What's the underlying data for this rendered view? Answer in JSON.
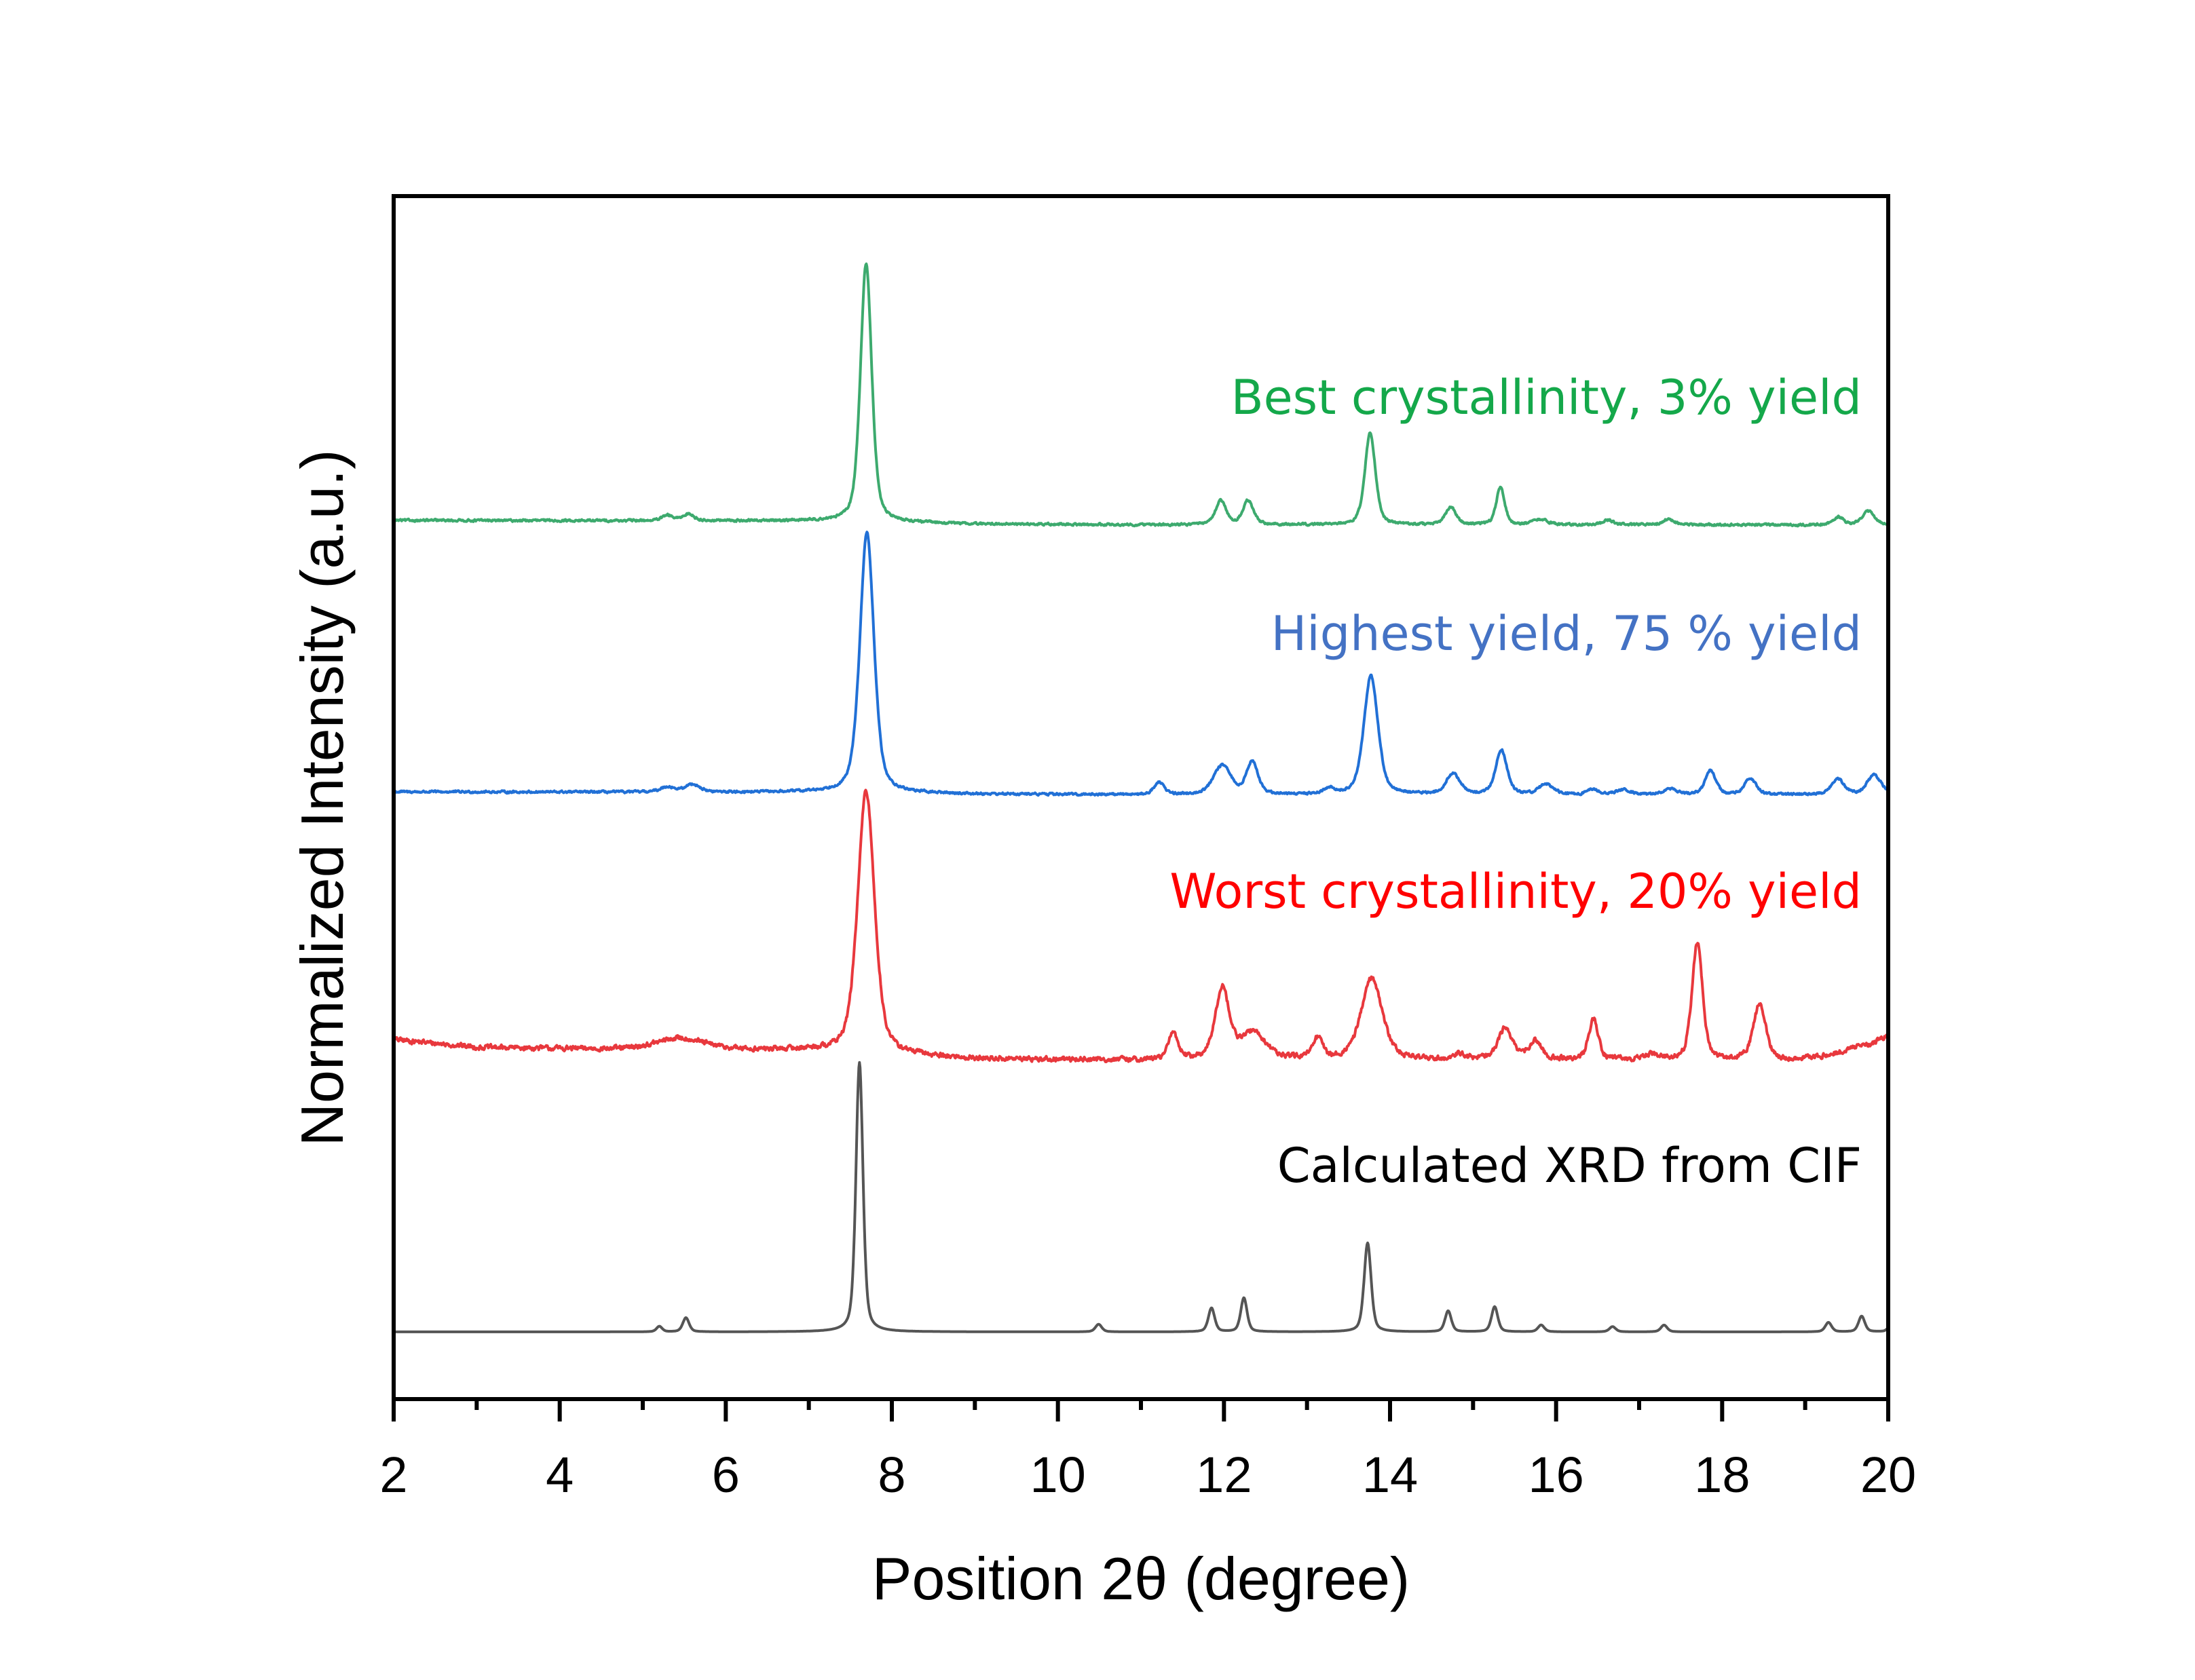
{
  "chart_data": {
    "type": "line",
    "title": "",
    "xlabel": "Position 2θ (degree)",
    "ylabel": "Normalized Intensity (a.u.)",
    "xlim": [
      2,
      20
    ],
    "ylim": [
      0,
      4.6
    ],
    "x_ticks": [
      2,
      4,
      6,
      8,
      10,
      12,
      14,
      16,
      18,
      20
    ],
    "x_minor_ticks": [
      3,
      5,
      7,
      9,
      11,
      13,
      15,
      17,
      19
    ],
    "y_ticks": [],
    "grid": false,
    "legend": "none (inline labels right-aligned above each trace)",
    "series": [
      {
        "name": "Calculated XRD from CIF",
        "label": "Calculated XRD from CIF",
        "color": "#555555",
        "label_color": "#000000",
        "baseline": [
          [
            2,
            0.257
          ],
          [
            20,
            0.257
          ]
        ],
        "noise": 0,
        "peaks": [
          {
            "pos": 5.2,
            "height": 0.021,
            "fwhm": 0.08
          },
          {
            "pos": 5.52,
            "height": 0.054,
            "fwhm": 0.09
          },
          {
            "pos": 7.61,
            "height": 1.03,
            "fwhm": 0.1
          },
          {
            "pos": 10.49,
            "height": 0.029,
            "fwhm": 0.09
          },
          {
            "pos": 11.85,
            "height": 0.091,
            "fwhm": 0.09
          },
          {
            "pos": 12.24,
            "height": 0.13,
            "fwhm": 0.09
          },
          {
            "pos": 13.73,
            "height": 0.34,
            "fwhm": 0.1
          },
          {
            "pos": 14.7,
            "height": 0.08,
            "fwhm": 0.09
          },
          {
            "pos": 15.26,
            "height": 0.096,
            "fwhm": 0.09
          },
          {
            "pos": 15.82,
            "height": 0.026,
            "fwhm": 0.09
          },
          {
            "pos": 16.68,
            "height": 0.02,
            "fwhm": 0.09
          },
          {
            "pos": 17.3,
            "height": 0.026,
            "fwhm": 0.09
          },
          {
            "pos": 19.28,
            "height": 0.036,
            "fwhm": 0.09
          },
          {
            "pos": 19.68,
            "height": 0.06,
            "fwhm": 0.09
          },
          {
            "pos": 20.05,
            "height": 0.04,
            "fwhm": 0.09
          }
        ]
      },
      {
        "name": "Worst crystallinity, 20% yield",
        "label": "Worst crystallinity, 20% yield",
        "color": "#E8383D",
        "label_color": "#FF0000",
        "baseline": [
          [
            2,
            1.375
          ],
          [
            3,
            1.345
          ],
          [
            5,
            1.335
          ],
          [
            7,
            1.333
          ],
          [
            9,
            1.3
          ],
          [
            11,
            1.296
          ],
          [
            13,
            1.3
          ],
          [
            15,
            1.298
          ],
          [
            17,
            1.296
          ],
          [
            18.8,
            1.296
          ],
          [
            19.2,
            1.31
          ],
          [
            19.8,
            1.36
          ],
          [
            20,
            1.39
          ]
        ],
        "noise": 0.018,
        "peaks": [
          {
            "pos": 5.45,
            "height": 0.045,
            "fwhm": 0.7
          },
          {
            "pos": 7.69,
            "height": 1.0,
            "fwhm": 0.24
          },
          {
            "pos": 11.39,
            "height": 0.1,
            "fwhm": 0.14
          },
          {
            "pos": 11.98,
            "height": 0.27,
            "fwhm": 0.2
          },
          {
            "pos": 12.35,
            "height": 0.1,
            "fwhm": 0.35
          },
          {
            "pos": 13.13,
            "height": 0.075,
            "fwhm": 0.14
          },
          {
            "pos": 13.78,
            "height": 0.31,
            "fwhm": 0.3
          },
          {
            "pos": 14.85,
            "height": 0.02,
            "fwhm": 0.15
          },
          {
            "pos": 15.39,
            "height": 0.12,
            "fwhm": 0.2
          },
          {
            "pos": 15.75,
            "height": 0.07,
            "fwhm": 0.18
          },
          {
            "pos": 16.45,
            "height": 0.15,
            "fwhm": 0.14
          },
          {
            "pos": 17.15,
            "height": 0.02,
            "fwhm": 0.2
          },
          {
            "pos": 17.7,
            "height": 0.45,
            "fwhm": 0.15
          },
          {
            "pos": 18.45,
            "height": 0.21,
            "fwhm": 0.18
          }
        ]
      },
      {
        "name": "Highest yield, 75 % yield",
        "label": "Highest yield, 75 % yield",
        "color": "#2170D6",
        "label_color": "#4472C4",
        "baseline": [
          [
            2,
            2.322
          ],
          [
            7,
            2.32
          ],
          [
            9,
            2.313
          ],
          [
            11,
            2.311
          ],
          [
            20,
            2.311
          ]
        ],
        "noise": 0.008,
        "peaks": [
          {
            "pos": 5.3,
            "height": 0.02,
            "fwhm": 0.2
          },
          {
            "pos": 5.6,
            "height": 0.03,
            "fwhm": 0.2
          },
          {
            "pos": 7.7,
            "height": 0.995,
            "fwhm": 0.2
          },
          {
            "pos": 11.22,
            "height": 0.047,
            "fwhm": 0.14
          },
          {
            "pos": 11.98,
            "height": 0.11,
            "fwhm": 0.25
          },
          {
            "pos": 12.34,
            "height": 0.125,
            "fwhm": 0.16
          },
          {
            "pos": 13.27,
            "height": 0.022,
            "fwhm": 0.15
          },
          {
            "pos": 13.77,
            "height": 0.455,
            "fwhm": 0.2
          },
          {
            "pos": 14.76,
            "height": 0.078,
            "fwhm": 0.2
          },
          {
            "pos": 15.34,
            "height": 0.17,
            "fwhm": 0.16
          },
          {
            "pos": 15.88,
            "height": 0.04,
            "fwhm": 0.2
          },
          {
            "pos": 16.45,
            "height": 0.02,
            "fwhm": 0.15
          },
          {
            "pos": 16.81,
            "height": 0.018,
            "fwhm": 0.2
          },
          {
            "pos": 17.37,
            "height": 0.02,
            "fwhm": 0.2
          },
          {
            "pos": 17.86,
            "height": 0.092,
            "fwhm": 0.15
          },
          {
            "pos": 18.34,
            "height": 0.062,
            "fwhm": 0.16
          },
          {
            "pos": 19.39,
            "height": 0.06,
            "fwhm": 0.18
          },
          {
            "pos": 19.83,
            "height": 0.075,
            "fwhm": 0.2
          }
        ]
      },
      {
        "name": "Best crystallinity, 3% yield",
        "label": "Best crystallinity, 3% yield",
        "color": "#3DAA6E",
        "label_color": "#14A84A",
        "baseline": [
          [
            2,
            3.36
          ],
          [
            7,
            3.358
          ],
          [
            9,
            3.346
          ],
          [
            11,
            3.343
          ],
          [
            20,
            3.343
          ]
        ],
        "noise": 0.008,
        "peaks": [
          {
            "pos": 5.3,
            "height": 0.02,
            "fwhm": 0.15
          },
          {
            "pos": 5.55,
            "height": 0.026,
            "fwhm": 0.15
          },
          {
            "pos": 7.69,
            "height": 0.99,
            "fwhm": 0.16
          },
          {
            "pos": 11.96,
            "height": 0.092,
            "fwhm": 0.15
          },
          {
            "pos": 12.29,
            "height": 0.092,
            "fwhm": 0.15
          },
          {
            "pos": 13.76,
            "height": 0.35,
            "fwhm": 0.15
          },
          {
            "pos": 14.73,
            "height": 0.066,
            "fwhm": 0.15
          },
          {
            "pos": 15.33,
            "height": 0.142,
            "fwhm": 0.12
          },
          {
            "pos": 15.81,
            "height": 0.02,
            "fwhm": 0.2
          },
          {
            "pos": 16.63,
            "height": 0.018,
            "fwhm": 0.15
          },
          {
            "pos": 17.35,
            "height": 0.022,
            "fwhm": 0.15
          },
          {
            "pos": 19.4,
            "height": 0.029,
            "fwhm": 0.15
          },
          {
            "pos": 19.76,
            "height": 0.052,
            "fwhm": 0.17
          }
        ]
      }
    ]
  }
}
